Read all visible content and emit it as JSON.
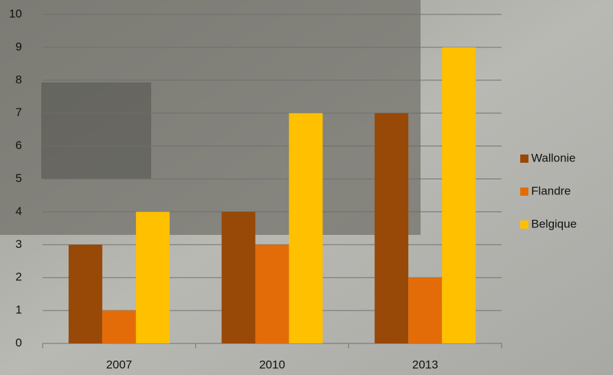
{
  "chart_data": {
    "type": "bar",
    "categories": [
      "2007",
      "2010",
      "2013"
    ],
    "series": [
      {
        "name": "Wallonie",
        "color": "#984807",
        "values": [
          3,
          4,
          7
        ]
      },
      {
        "name": "Flandre",
        "color": "#e36c09",
        "values": [
          1,
          3,
          2
        ]
      },
      {
        "name": "Belgique",
        "color": "#ffc000",
        "values": [
          4,
          7,
          9
        ]
      }
    ],
    "ylim": [
      0,
      10
    ],
    "yticks": [
      0,
      1,
      2,
      3,
      4,
      5,
      6,
      7,
      8,
      9,
      10
    ],
    "grid": true,
    "legend": "right"
  }
}
